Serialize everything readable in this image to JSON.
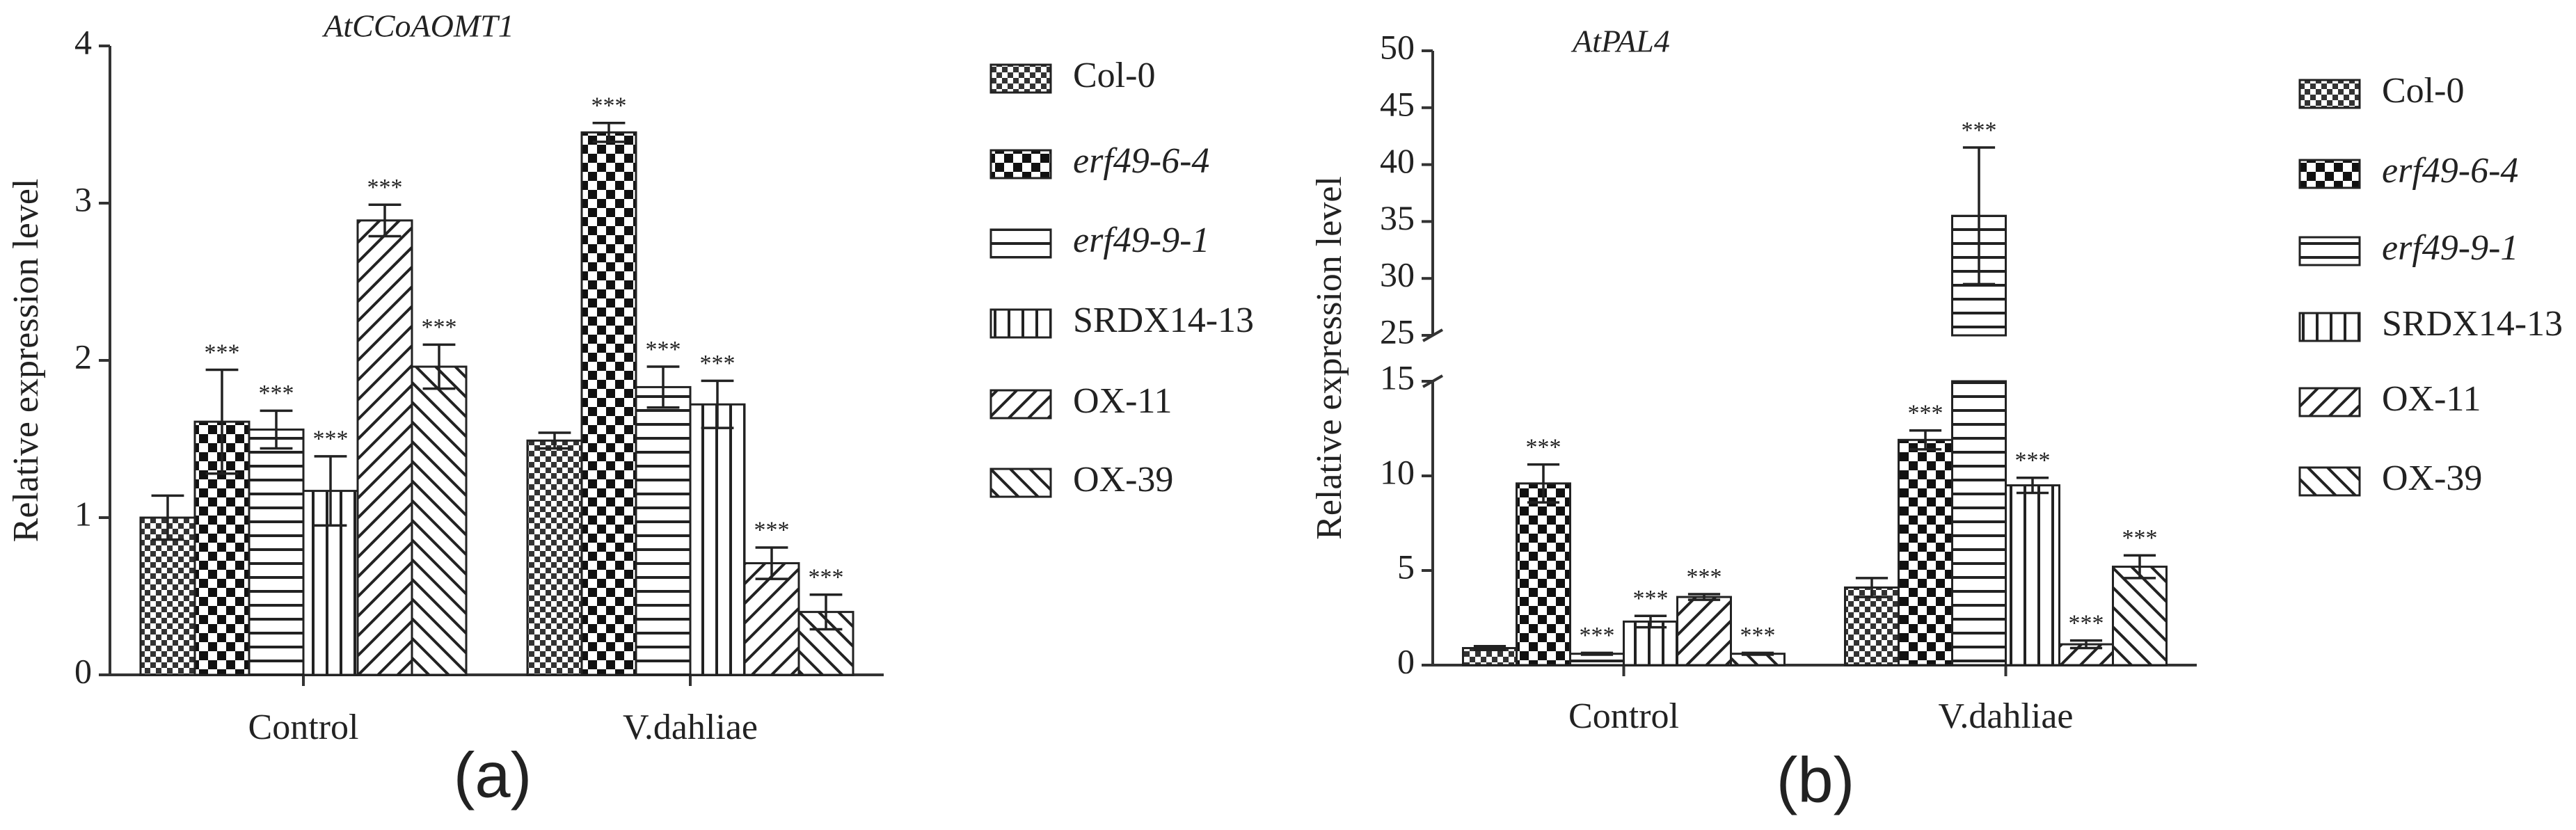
{
  "chart_data": [
    {
      "type": "bar",
      "title": "AtCCoAOMT1",
      "ylabel": "Relative expression level",
      "panel_label": "(a)",
      "categories": [
        "Control",
        "V.dahliae"
      ],
      "ylim": [
        0,
        4
      ],
      "yticks": [
        0,
        1,
        2,
        3,
        4
      ],
      "series": [
        {
          "name": "Col-0",
          "pattern": "checker-small",
          "italic": false,
          "values": [
            1.0,
            1.49
          ],
          "errors": [
            0.14,
            0.05
          ],
          "significance": [
            null,
            null
          ]
        },
        {
          "name": "erf49-6-4",
          "pattern": "checker-large",
          "italic": true,
          "values": [
            1.61,
            3.45
          ],
          "errors": [
            0.33,
            0.06
          ],
          "significance": [
            "***",
            "***"
          ]
        },
        {
          "name": "erf49-9-1",
          "pattern": "hlines",
          "italic": true,
          "values": [
            1.56,
            1.83
          ],
          "errors": [
            0.12,
            0.13
          ],
          "significance": [
            "***",
            "***"
          ]
        },
        {
          "name": "SRDX14-13",
          "pattern": "vlines",
          "italic": false,
          "values": [
            1.17,
            1.72
          ],
          "errors": [
            0.22,
            0.15
          ],
          "significance": [
            "***",
            "***"
          ]
        },
        {
          "name": "OX-11",
          "pattern": "diag-right",
          "italic": false,
          "values": [
            2.89,
            0.71
          ],
          "errors": [
            0.1,
            0.1
          ],
          "significance": [
            "***",
            "***"
          ]
        },
        {
          "name": "OX-39",
          "pattern": "diag-left",
          "italic": false,
          "values": [
            1.96,
            0.4
          ],
          "errors": [
            0.14,
            0.11
          ],
          "significance": [
            "***",
            "***"
          ]
        }
      ]
    },
    {
      "type": "bar",
      "title": "AtPAL4",
      "ylabel": "Relative expression level",
      "panel_label": "(b)",
      "categories": [
        "Control",
        "V.dahliae"
      ],
      "ylim": [
        0,
        50
      ],
      "ybreak": [
        15,
        25
      ],
      "yticks": [
        0,
        5,
        10,
        15,
        25,
        30,
        35,
        40,
        45,
        50
      ],
      "series": [
        {
          "name": "Col-0",
          "pattern": "checker-small",
          "italic": false,
          "values": [
            0.9,
            4.1
          ],
          "errors": [
            0.1,
            0.5
          ],
          "significance": [
            null,
            null
          ]
        },
        {
          "name": "erf49-6-4",
          "pattern": "checker-large",
          "italic": true,
          "values": [
            9.6,
            11.9
          ],
          "errors": [
            1.0,
            0.5
          ],
          "significance": [
            "***",
            "***"
          ]
        },
        {
          "name": "erf49-9-1",
          "pattern": "hlines",
          "italic": true,
          "values": [
            0.6,
            35.5
          ],
          "errors": [
            0.05,
            6.0
          ],
          "significance": [
            "***",
            "***"
          ]
        },
        {
          "name": "SRDX14-13",
          "pattern": "vlines",
          "italic": false,
          "values": [
            2.3,
            9.5
          ],
          "errors": [
            0.3,
            0.4
          ],
          "significance": [
            "***",
            "***"
          ]
        },
        {
          "name": "OX-11",
          "pattern": "diag-right",
          "italic": false,
          "values": [
            3.6,
            1.1
          ],
          "errors": [
            0.15,
            0.2
          ],
          "significance": [
            "***",
            "***"
          ]
        },
        {
          "name": "OX-39",
          "pattern": "diag-left",
          "italic": false,
          "values": [
            0.6,
            5.2
          ],
          "errors": [
            0.05,
            0.6
          ],
          "significance": [
            "***",
            "***"
          ]
        }
      ]
    }
  ]
}
